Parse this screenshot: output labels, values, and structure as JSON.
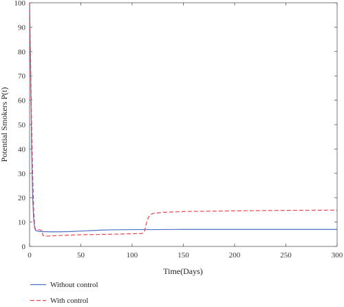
{
  "chart_data": {
    "type": "line",
    "title": "",
    "xlabel": "Time(Days)",
    "ylabel": "Potential Smokers P(t)",
    "xlim": [
      0,
      300
    ],
    "ylim": [
      0,
      100
    ],
    "xticks": [
      0,
      50,
      100,
      150,
      200,
      250,
      300
    ],
    "yticks": [
      0,
      10,
      20,
      30,
      40,
      50,
      60,
      70,
      80,
      90,
      100
    ],
    "grid": false,
    "legend_placement": "bottom-left",
    "series": [
      {
        "name": "Without control",
        "color": "#4a6fc4",
        "dash": "solid",
        "points": [
          [
            0,
            100
          ],
          [
            1,
            70
          ],
          [
            2,
            40
          ],
          [
            3,
            20
          ],
          [
            4,
            11
          ],
          [
            5,
            7.5
          ],
          [
            6,
            6.5
          ],
          [
            10,
            6.1
          ],
          [
            20,
            6.0
          ],
          [
            30,
            6.0
          ],
          [
            40,
            6.1
          ],
          [
            50,
            6.3
          ],
          [
            60,
            6.5
          ],
          [
            70,
            6.7
          ],
          [
            80,
            6.8
          ],
          [
            100,
            6.9
          ],
          [
            120,
            6.9
          ],
          [
            150,
            7.0
          ],
          [
            200,
            7.0
          ],
          [
            250,
            7.0
          ],
          [
            300,
            7.0
          ]
        ]
      },
      {
        "name": "With control",
        "color": "#e8434b",
        "dash": "dashed",
        "points": [
          [
            0,
            100
          ],
          [
            1,
            75
          ],
          [
            2,
            50
          ],
          [
            3,
            30
          ],
          [
            4,
            15
          ],
          [
            5,
            8.0
          ],
          [
            6,
            7.0
          ],
          [
            10,
            6.8
          ],
          [
            12,
            6.5
          ],
          [
            13,
            4.5
          ],
          [
            15,
            4.2
          ],
          [
            30,
            4.5
          ],
          [
            50,
            4.8
          ],
          [
            80,
            5.0
          ],
          [
            100,
            5.2
          ],
          [
            110,
            5.3
          ],
          [
            112,
            6.0
          ],
          [
            114,
            9.5
          ],
          [
            116,
            12.0
          ],
          [
            118,
            13.0
          ],
          [
            120,
            13.5
          ],
          [
            130,
            14.0
          ],
          [
            150,
            14.3
          ],
          [
            200,
            14.6
          ],
          [
            250,
            14.8
          ],
          [
            300,
            14.9
          ]
        ]
      }
    ]
  }
}
